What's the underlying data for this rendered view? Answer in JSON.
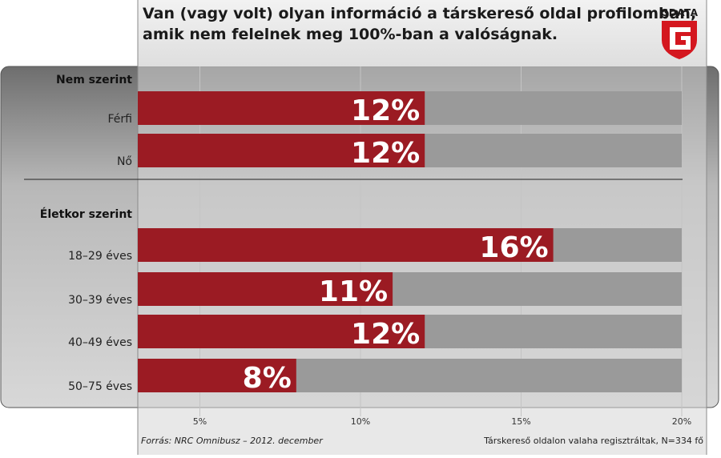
{
  "title_lines": [
    "Van (vagy volt) olyan információ a társkereső oldal profilomban,",
    "amik nem felelnek meg 100%-ban a valóságnak."
  ],
  "logo_text": "GDATA",
  "footer": {
    "source": "Forrás: NRC Omnibusz – 2012. december",
    "sample": "Társkereső oldalon valaha regisztráltak, N=334 fő"
  },
  "colors": {
    "bar": "#9b1b23",
    "track": "#9a9a9a",
    "logo_red": "#d4171f"
  },
  "chart_data": {
    "type": "bar",
    "orientation": "horizontal",
    "title": "Van (vagy volt) olyan információ a társkereső oldal profilomban, amik nem felelnek meg 100%-ban a valóságnak.",
    "xlim": [
      0,
      20
    ],
    "xticks": [
      "5%",
      "10%",
      "15%",
      "20%"
    ],
    "xtick_values": [
      5,
      10,
      15,
      20
    ],
    "groups": [
      {
        "label": "Nem szerint",
        "categories": [
          "Férfi",
          "Nő"
        ],
        "values": [
          12,
          12
        ],
        "value_labels": [
          "12%",
          "12%"
        ]
      },
      {
        "label": "Életkor szerint",
        "categories": [
          "18–29 éves",
          "30–39 éves",
          "40–49 éves",
          "50–75 éves"
        ],
        "values": [
          16,
          11,
          12,
          8
        ],
        "value_labels": [
          "16%",
          "11%",
          "12%",
          "8%"
        ]
      }
    ]
  }
}
